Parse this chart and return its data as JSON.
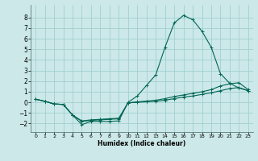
{
  "xlabel": "Humidex (Indice chaleur)",
  "bg_color": "#cce8e8",
  "grid_color": "#99cccc",
  "line_color": "#006655",
  "xlim": [
    -0.5,
    23.5
  ],
  "ylim": [
    -2.8,
    9.2
  ],
  "xticks": [
    0,
    1,
    2,
    3,
    4,
    5,
    6,
    7,
    8,
    9,
    10,
    11,
    12,
    13,
    14,
    15,
    16,
    17,
    18,
    19,
    20,
    21,
    22,
    23
  ],
  "yticks": [
    -2,
    -1,
    0,
    1,
    2,
    3,
    4,
    5,
    6,
    7,
    8
  ],
  "line1_x": [
    0,
    1,
    2,
    3,
    4,
    5,
    6,
    7,
    8,
    9,
    10,
    11,
    12,
    13,
    14,
    15,
    16,
    17,
    18,
    19,
    20,
    21,
    22,
    23
  ],
  "line1_y": [
    0.3,
    0.1,
    -0.15,
    -0.2,
    -1.2,
    -2.1,
    -1.8,
    -1.8,
    -1.8,
    -1.75,
    0.0,
    0.6,
    1.6,
    2.6,
    5.2,
    7.5,
    8.2,
    7.8,
    6.7,
    5.2,
    2.7,
    1.8,
    1.35,
    1.1
  ],
  "line2_x": [
    0,
    1,
    2,
    3,
    4,
    5,
    6,
    7,
    8,
    9,
    10,
    11,
    12,
    13,
    14,
    15,
    16,
    17,
    18,
    19,
    20,
    21,
    22,
    23
  ],
  "line2_y": [
    0.3,
    0.1,
    -0.15,
    -0.2,
    -1.2,
    -1.75,
    -1.65,
    -1.6,
    -1.55,
    -1.5,
    -0.05,
    0.05,
    0.12,
    0.2,
    0.35,
    0.55,
    0.7,
    0.85,
    1.0,
    1.2,
    1.55,
    1.75,
    1.85,
    1.2
  ],
  "line3_x": [
    0,
    1,
    2,
    3,
    4,
    5,
    6,
    7,
    8,
    9,
    10,
    11,
    12,
    13,
    14,
    15,
    16,
    17,
    18,
    19,
    20,
    21,
    22,
    23
  ],
  "line3_y": [
    0.3,
    0.1,
    -0.15,
    -0.2,
    -1.2,
    -1.8,
    -1.7,
    -1.65,
    -1.6,
    -1.55,
    -0.05,
    0.0,
    0.05,
    0.1,
    0.2,
    0.35,
    0.5,
    0.6,
    0.75,
    0.9,
    1.1,
    1.3,
    1.4,
    1.1
  ]
}
